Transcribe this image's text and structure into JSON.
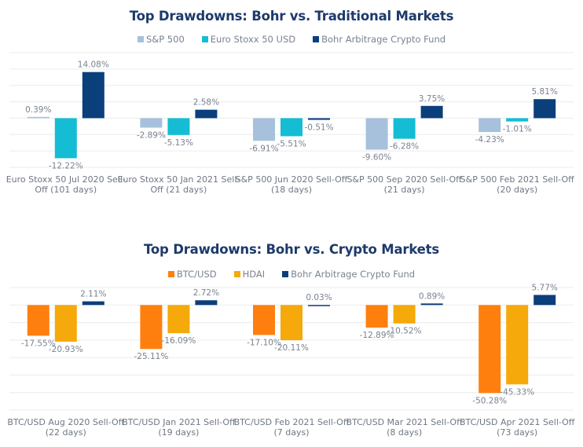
{
  "chart_data": [
    {
      "type": "bar",
      "title": "Top Drawdowns: Bohr vs. Traditional Markets",
      "xlabel": "",
      "ylabel": "",
      "ylim": [
        -15,
        20
      ],
      "grid": true,
      "legend_position": "top-center",
      "categories": [
        [
          "Euro Stoxx 50 Jul 2020 Sell-",
          "Off (101 days)"
        ],
        [
          "Euro Stoxx 50 Jan 2021 Sell-",
          "Off (21 days)"
        ],
        [
          "S&P 500 Jun 2020 Sell-Off",
          "(18 days)"
        ],
        [
          "S&P 500 Sep 2020 Sell-Off",
          "(21 days)"
        ],
        [
          "S&P 500 Feb 2021 Sell-Off",
          "(20 days)"
        ]
      ],
      "series": [
        {
          "name": "S&P 500",
          "color": "#a7c1dc",
          "values": [
            0.39,
            -2.89,
            -6.91,
            -9.6,
            -4.23
          ],
          "labels": [
            "0.39%",
            "-2.89%",
            "-6.91%",
            "-9.60%",
            "-4.23%"
          ]
        },
        {
          "name": "Euro Stoxx 50 USD",
          "color": "#14bdd4",
          "values": [
            -12.22,
            -5.13,
            -5.51,
            -6.28,
            -1.01
          ],
          "labels": [
            "-12.22%",
            "-5.13%",
            "-5.51%",
            "-6.28%",
            "-1.01%"
          ]
        },
        {
          "name": "Bohr Arbitrage Crypto Fund",
          "color": "#0b3f7c",
          "values": [
            14.08,
            2.58,
            -0.51,
            3.75,
            5.81
          ],
          "labels": [
            "14.08%",
            "2.58%",
            "-0.51%",
            "3.75%",
            "5.81%"
          ]
        }
      ]
    },
    {
      "type": "bar",
      "title": "Top Drawdowns: Bohr vs. Crypto Markets",
      "xlabel": "",
      "ylabel": "",
      "ylim": [
        -60,
        10
      ],
      "grid": true,
      "legend_position": "top-center",
      "categories": [
        [
          "BTC/USD Aug 2020 Sell-Off",
          "(22 days)"
        ],
        [
          "BTC/USD Jan 2021 Sell-Off",
          "(19 days)"
        ],
        [
          "BTC/USD Feb 2021 Sell-Off",
          "(7 days)"
        ],
        [
          "BTC/USD Mar 2021 Sell-Off",
          "(8 days)"
        ],
        [
          "BTC/USD Apr 2021 Sell-Off",
          "(73 days)"
        ]
      ],
      "series": [
        {
          "name": "BTC/USD",
          "color": "#ff7f0e",
          "values": [
            -17.55,
            -25.11,
            -17.1,
            -12.89,
            -50.28
          ],
          "labels": [
            "-17.55%",
            "-25.11%",
            "-17.10%",
            "-12.89%",
            "-50.28%"
          ]
        },
        {
          "name": "HDAI",
          "color": "#f5a90a",
          "values": [
            -20.93,
            -16.09,
            -20.11,
            -10.52,
            -45.33
          ],
          "labels": [
            "-20.93%",
            "-16.09%",
            "-20.11%",
            "-10.52%",
            "-45.33%"
          ]
        },
        {
          "name": "Bohr Arbitrage Crypto Fund",
          "color": "#0b3f7c",
          "values": [
            2.11,
            2.72,
            0.03,
            0.89,
            5.77
          ],
          "labels": [
            "2.11%",
            "2.72%",
            "0.03%",
            "0.89%",
            "5.77%"
          ]
        }
      ]
    }
  ]
}
